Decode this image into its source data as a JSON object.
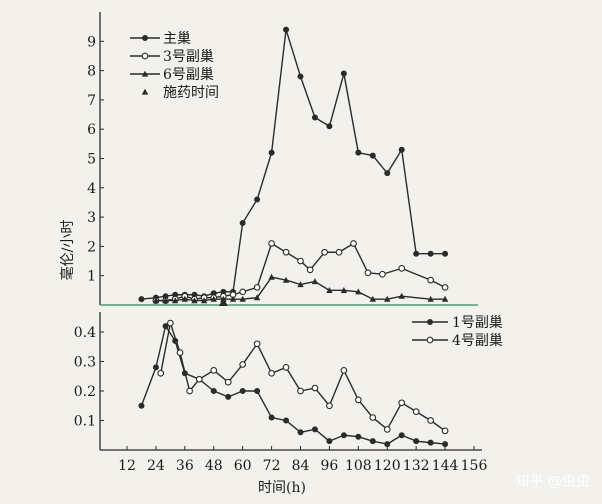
{
  "chart_data": [
    {
      "type": "line",
      "panel": "top",
      "ylabel": "毫伦/小时",
      "xlabel": "",
      "yticks": [
        1,
        2,
        3,
        4,
        5,
        6,
        7,
        8,
        9
      ],
      "legend_position": "top-left",
      "series": [
        {
          "name": "主巢",
          "marker": "filled-circle",
          "x": [
            18,
            24,
            28,
            32,
            36,
            40,
            44,
            48,
            52,
            56,
            60,
            66,
            72,
            78,
            84,
            90,
            96,
            102,
            108,
            114,
            120,
            126,
            132,
            138,
            144
          ],
          "y": [
            0.2,
            0.25,
            0.3,
            0.35,
            0.35,
            0.35,
            0.3,
            0.4,
            0.45,
            0.45,
            2.8,
            3.6,
            5.2,
            9.4,
            7.8,
            6.4,
            6.1,
            7.9,
            5.2,
            5.1,
            4.5,
            5.3,
            1.75,
            1.75,
            1.75
          ]
        },
        {
          "name": "3号副巢",
          "marker": "open-circle",
          "x": [
            24,
            28,
            32,
            36,
            40,
            44,
            48,
            52,
            56,
            60,
            66,
            72,
            78,
            84,
            88,
            94,
            100,
            106,
            112,
            118,
            126,
            138,
            144
          ],
          "y": [
            0.15,
            0.15,
            0.2,
            0.3,
            0.2,
            0.25,
            0.25,
            0.3,
            0.35,
            0.45,
            0.6,
            2.1,
            1.8,
            1.5,
            1.2,
            1.8,
            1.8,
            2.1,
            1.1,
            1.05,
            1.25,
            0.85,
            0.6
          ]
        },
        {
          "name": "6号副巢",
          "marker": "filled-triangle",
          "x": [
            24,
            28,
            32,
            36,
            40,
            44,
            48,
            52,
            56,
            60,
            66,
            72,
            78,
            84,
            90,
            96,
            102,
            108,
            114,
            120,
            126,
            138,
            144
          ],
          "y": [
            0.15,
            0.15,
            0.15,
            0.2,
            0.15,
            0.15,
            0.2,
            0.2,
            0.2,
            0.2,
            0.25,
            0.95,
            0.85,
            0.7,
            0.8,
            0.5,
            0.5,
            0.45,
            0.2,
            0.2,
            0.3,
            0.2,
            0.2
          ]
        }
      ],
      "annotations": [
        {
          "name": "施药时间",
          "marker": "filled-triangle-large",
          "x": [
            52
          ]
        }
      ]
    },
    {
      "type": "line",
      "panel": "bottom",
      "ylabel": "",
      "xlabel": "时间(h)",
      "yticks": [
        0.1,
        0.2,
        0.3,
        0.4
      ],
      "xticks": [
        12,
        24,
        36,
        48,
        60,
        72,
        84,
        96,
        108,
        120,
        132,
        144,
        156
      ],
      "legend_position": "top-right",
      "series": [
        {
          "name": "1号副巢",
          "marker": "filled-circle",
          "x": [
            18,
            24,
            28,
            32,
            36,
            42,
            48,
            54,
            60,
            66,
            72,
            78,
            84,
            90,
            96,
            102,
            108,
            114,
            120,
            126,
            132,
            138,
            144
          ],
          "y": [
            0.15,
            0.28,
            0.42,
            0.37,
            0.26,
            0.24,
            0.2,
            0.18,
            0.2,
            0.2,
            0.11,
            0.1,
            0.06,
            0.07,
            0.03,
            0.05,
            0.045,
            0.03,
            0.02,
            0.05,
            0.03,
            0.025,
            0.02
          ]
        },
        {
          "name": "4号副巢",
          "marker": "open-circle",
          "x": [
            26,
            30,
            34,
            38,
            42,
            48,
            54,
            60,
            66,
            72,
            78,
            84,
            90,
            96,
            102,
            108,
            114,
            120,
            126,
            132,
            138,
            144
          ],
          "y": [
            0.26,
            0.43,
            0.33,
            0.2,
            0.24,
            0.27,
            0.23,
            0.29,
            0.36,
            0.26,
            0.28,
            0.2,
            0.21,
            0.15,
            0.27,
            0.17,
            0.11,
            0.07,
            0.16,
            0.13,
            0.1,
            0.065
          ]
        }
      ]
    }
  ],
  "watermark": "知乎 @虫虫"
}
